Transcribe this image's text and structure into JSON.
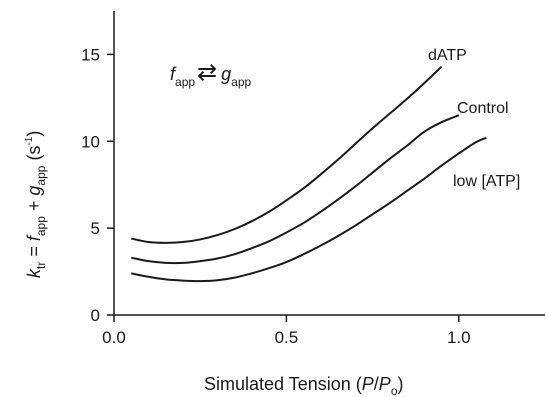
{
  "chart_data": {
    "type": "line",
    "xlabel_parts": {
      "main": "Simulated Tension (",
      "var": "P",
      "slash": "/",
      "var2": "P",
      "sub": "o",
      "close": ")"
    },
    "ylabel_parts": {
      "k": "k",
      "ksub": "tr",
      "eq": " = ",
      "f": "f",
      "fsub": "app",
      "plus": " + ",
      "g": "g",
      "gsub": "app",
      "unit": " (s",
      "exp": "-1",
      "close": ")"
    },
    "annotation": {
      "f": "f",
      "fsub": "app",
      "arrow": "⇄",
      "g": "g",
      "gsub": "app"
    },
    "xlim": [
      0,
      1.25
    ],
    "ylim": [
      0,
      17.5
    ],
    "xticks": [
      0.0,
      0.5,
      1.0
    ],
    "xtick_labels": [
      "0.0",
      "0.5",
      "1.0"
    ],
    "yticks": [
      0,
      5,
      10,
      15
    ],
    "ytick_labels": [
      "0",
      "5",
      "10",
      "15"
    ],
    "series": [
      {
        "name": "dATP",
        "color": "#1a1a1a",
        "points": [
          [
            0.05,
            4.4
          ],
          [
            0.1,
            4.2
          ],
          [
            0.15,
            4.15
          ],
          [
            0.2,
            4.2
          ],
          [
            0.25,
            4.35
          ],
          [
            0.3,
            4.6
          ],
          [
            0.35,
            4.95
          ],
          [
            0.4,
            5.4
          ],
          [
            0.45,
            5.95
          ],
          [
            0.5,
            6.6
          ],
          [
            0.55,
            7.3
          ],
          [
            0.6,
            8.1
          ],
          [
            0.65,
            8.95
          ],
          [
            0.7,
            9.85
          ],
          [
            0.75,
            10.75
          ],
          [
            0.8,
            11.6
          ],
          [
            0.85,
            12.45
          ],
          [
            0.9,
            13.35
          ],
          [
            0.95,
            14.3
          ]
        ]
      },
      {
        "name": "Control",
        "color": "#1a1a1a",
        "points": [
          [
            0.05,
            3.3
          ],
          [
            0.1,
            3.1
          ],
          [
            0.15,
            3.0
          ],
          [
            0.2,
            3.0
          ],
          [
            0.25,
            3.1
          ],
          [
            0.3,
            3.25
          ],
          [
            0.35,
            3.5
          ],
          [
            0.4,
            3.85
          ],
          [
            0.45,
            4.25
          ],
          [
            0.5,
            4.75
          ],
          [
            0.55,
            5.3
          ],
          [
            0.6,
            5.95
          ],
          [
            0.65,
            6.65
          ],
          [
            0.7,
            7.4
          ],
          [
            0.75,
            8.2
          ],
          [
            0.8,
            9.0
          ],
          [
            0.85,
            9.75
          ],
          [
            0.9,
            10.55
          ],
          [
            0.95,
            11.1
          ],
          [
            1.0,
            11.5
          ]
        ]
      },
      {
        "name": "low [ATP]",
        "color": "#1a1a1a",
        "points": [
          [
            0.05,
            2.4
          ],
          [
            0.1,
            2.2
          ],
          [
            0.15,
            2.05
          ],
          [
            0.2,
            1.98
          ],
          [
            0.25,
            1.95
          ],
          [
            0.3,
            2.0
          ],
          [
            0.35,
            2.15
          ],
          [
            0.4,
            2.4
          ],
          [
            0.45,
            2.7
          ],
          [
            0.5,
            3.05
          ],
          [
            0.55,
            3.5
          ],
          [
            0.6,
            4.0
          ],
          [
            0.65,
            4.55
          ],
          [
            0.7,
            5.15
          ],
          [
            0.75,
            5.8
          ],
          [
            0.8,
            6.45
          ],
          [
            0.85,
            7.15
          ],
          [
            0.9,
            7.85
          ],
          [
            0.95,
            8.6
          ],
          [
            1.0,
            9.3
          ],
          [
            1.05,
            9.95
          ],
          [
            1.08,
            10.2
          ]
        ]
      }
    ],
    "grid": false,
    "legend": "inline labels at line ends"
  }
}
